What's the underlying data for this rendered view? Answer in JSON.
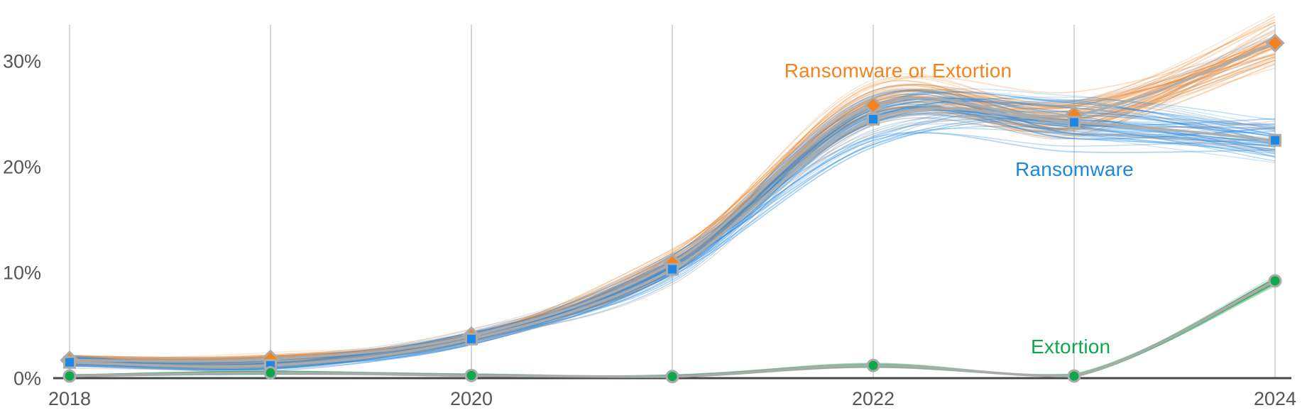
{
  "chart_data": {
    "type": "line",
    "title": "",
    "xlabel": "",
    "ylabel": "",
    "x": [
      2018,
      2019,
      2020,
      2021,
      2022,
      2023,
      2024
    ],
    "x_tick_labels": [
      {
        "year": 2018,
        "label": "2018"
      },
      {
        "year": 2020,
        "label": "2020"
      },
      {
        "year": 2022,
        "label": "2022"
      },
      {
        "year": 2024,
        "label": "2024"
      }
    ],
    "y_ticks": [
      {
        "value": 0,
        "label": "0%"
      },
      {
        "value": 10,
        "label": "10%"
      },
      {
        "value": 20,
        "label": "20%"
      },
      {
        "value": 30,
        "label": "30%"
      }
    ],
    "ylim": [
      0,
      33.4
    ],
    "grid": "vertical-gridlines-every-year",
    "legend_position": "inline-labels-near-lines",
    "style": "ensemble-spaghetti-band-with-gray-mean-line",
    "series": [
      {
        "name": "Ransomware or Extortion",
        "color": "#F5821E",
        "marker": "diamond",
        "values": [
          1.7,
          1.8,
          4.0,
          10.9,
          25.8,
          24.9,
          31.7
        ]
      },
      {
        "name": "Ransomware",
        "color": "#1E87E5",
        "marker": "square",
        "values": [
          1.5,
          1.2,
          3.7,
          10.3,
          24.5,
          24.2,
          22.5
        ]
      },
      {
        "name": "Extortion",
        "color": "#0DA84A",
        "marker": "circle",
        "values": [
          0.2,
          0.5,
          0.25,
          0.15,
          1.2,
          0.2,
          9.2
        ]
      }
    ],
    "colors": {
      "mean_line_gray": "#ACACAC",
      "marker_stroke_gray": "#ABABAB",
      "gridline": "#CDCDCD",
      "axis_line": "#474747",
      "tick_text": "#55565A"
    }
  }
}
